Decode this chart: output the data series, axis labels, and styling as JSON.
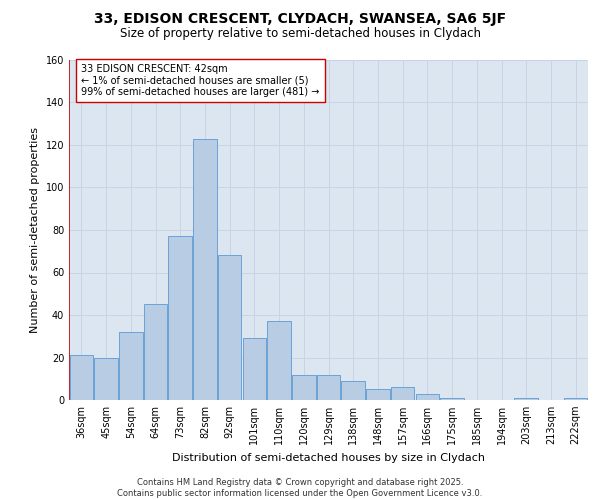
{
  "title_line1": "33, EDISON CRESCENT, CLYDACH, SWANSEA, SA6 5JF",
  "title_line2": "Size of property relative to semi-detached houses in Clydach",
  "xlabel": "Distribution of semi-detached houses by size in Clydach",
  "ylabel": "Number of semi-detached properties",
  "categories": [
    "36sqm",
    "45sqm",
    "54sqm",
    "64sqm",
    "73sqm",
    "82sqm",
    "92sqm",
    "101sqm",
    "110sqm",
    "120sqm",
    "129sqm",
    "138sqm",
    "148sqm",
    "157sqm",
    "166sqm",
    "175sqm",
    "185sqm",
    "194sqm",
    "203sqm",
    "213sqm",
    "222sqm"
  ],
  "values": [
    21,
    20,
    32,
    45,
    77,
    123,
    68,
    29,
    37,
    12,
    12,
    9,
    5,
    6,
    3,
    1,
    0,
    0,
    1,
    0,
    1
  ],
  "bar_color": "#b8cce4",
  "bar_edge_color": "#5b9bd5",
  "highlight_color": "#cc0000",
  "annotation_text": "33 EDISON CRESCENT: 42sqm\n← 1% of semi-detached houses are smaller (5)\n99% of semi-detached houses are larger (481) →",
  "annotation_box_color": "#ffffff",
  "annotation_box_edge": "#cc0000",
  "grid_color": "#c8d4e4",
  "background_color": "#dce6f0",
  "ylim": [
    0,
    160
  ],
  "yticks": [
    0,
    20,
    40,
    60,
    80,
    100,
    120,
    140,
    160
  ],
  "footer_text": "Contains HM Land Registry data © Crown copyright and database right 2025.\nContains public sector information licensed under the Open Government Licence v3.0.",
  "title_fontsize": 10,
  "subtitle_fontsize": 8.5,
  "axis_label_fontsize": 8,
  "tick_fontsize": 7,
  "annotation_fontsize": 7,
  "footer_fontsize": 6
}
